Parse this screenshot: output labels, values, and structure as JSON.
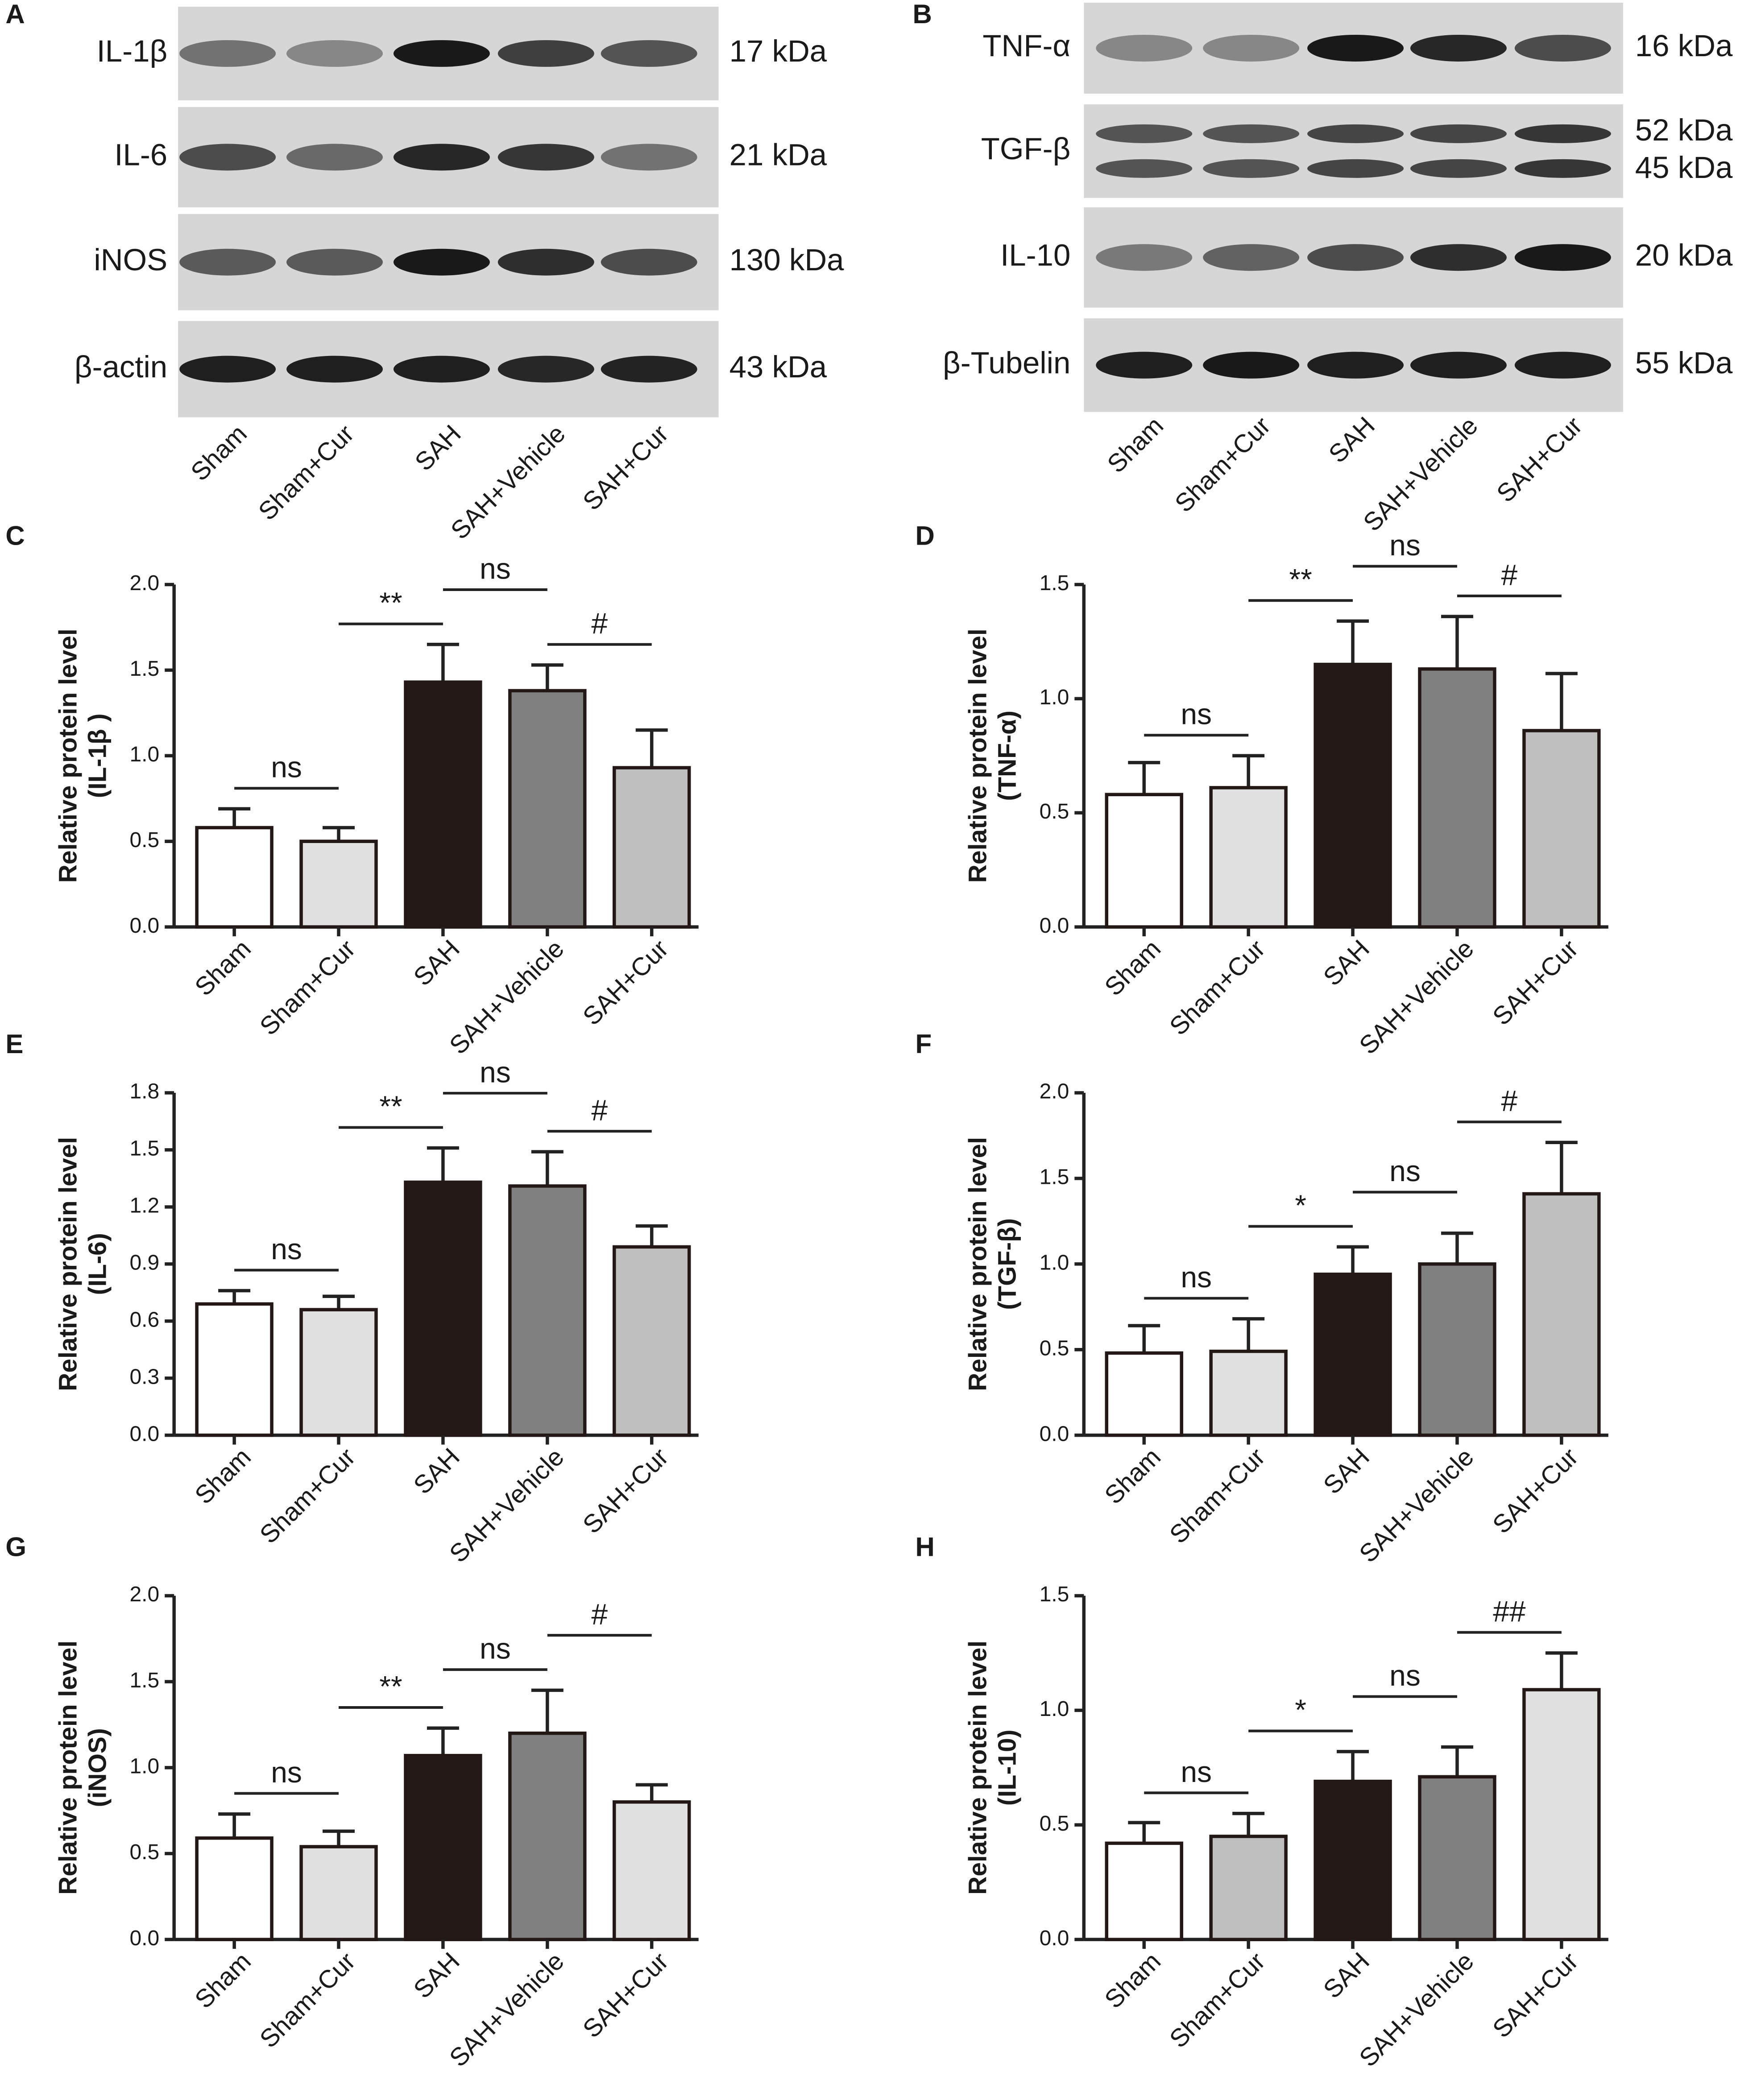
{
  "blots": [
    {
      "panel": "A",
      "proteins": [
        {
          "name": "IL-1β",
          "sizes": [
            "17 kDa"
          ]
        },
        {
          "name": "IL-6",
          "sizes": [
            "21 kDa"
          ]
        },
        {
          "name": "iNOS",
          "sizes": [
            "130 kDa"
          ]
        },
        {
          "name": "β-actin",
          "sizes": [
            "43 kDa"
          ]
        }
      ],
      "lanes": [
        "Sham",
        "Sham+Cur",
        "SAH",
        "SAH+Vehicle",
        "SAH+Cur"
      ]
    },
    {
      "panel": "B",
      "proteins": [
        {
          "name": "TNF-α",
          "sizes": [
            "16 kDa"
          ]
        },
        {
          "name": "TGF-β",
          "sizes": [
            "52 kDa",
            "45 kDa"
          ]
        },
        {
          "name": "IL-10",
          "sizes": [
            "20 kDa"
          ]
        },
        {
          "name": "β-Tubelin",
          "sizes": [
            "55 kDa"
          ]
        }
      ],
      "lanes": [
        "Sham",
        "Sham+Cur",
        "SAH",
        "SAH+Vehicle",
        "SAH+Cur"
      ]
    }
  ],
  "chart_data": [
    {
      "type": "bar",
      "panel": "C",
      "ylabel": [
        "Relative protein level",
        "(IL-1β )"
      ],
      "categories": [
        "Sham",
        "Sham+Cur",
        "SAH",
        "SAH+Vehicle",
        "SAH+Cur"
      ],
      "values": [
        0.58,
        0.5,
        1.43,
        1.38,
        0.93
      ],
      "errors": [
        0.11,
        0.08,
        0.22,
        0.15,
        0.22
      ],
      "colors": [
        "#ffffff",
        "#e0e0e0",
        "#231815",
        "#808080",
        "#bfbfbf"
      ],
      "ylim": [
        0,
        2
      ],
      "yticks": [
        {
          "value": 0,
          "label": "0.0"
        },
        0.5,
        {
          "value": 1,
          "label": "1.0"
        },
        1.5,
        {
          "value": 2,
          "label": "2.0"
        }
      ],
      "brackets": [
        {
          "from": 0,
          "to": 1,
          "label": "ns"
        },
        {
          "from": 1,
          "to": 2,
          "label": "**"
        },
        {
          "from": 2,
          "to": 3,
          "label": "ns"
        },
        {
          "from": 3,
          "to": 4,
          "label": "#"
        }
      ]
    },
    {
      "type": "bar",
      "panel": "D",
      "ylabel": [
        "Relative protein level",
        "(TNF-α)"
      ],
      "categories": [
        "Sham",
        "Sham+Cur",
        "SAH",
        "SAH+Vehicle",
        "SAH+Cur"
      ],
      "values": [
        0.58,
        0.61,
        1.15,
        1.13,
        0.86
      ],
      "errors": [
        0.14,
        0.14,
        0.19,
        0.23,
        0.25
      ],
      "colors": [
        "#ffffff",
        "#e0e0e0",
        "#231815",
        "#808080",
        "#bfbfbf"
      ],
      "ylim": [
        0,
        1.5
      ],
      "yticks": [
        {
          "value": 0,
          "label": "0.0"
        },
        0.5,
        {
          "value": 1,
          "label": "1.0"
        },
        1.5
      ],
      "brackets": [
        {
          "from": 0,
          "to": 1,
          "label": "ns"
        },
        {
          "from": 1,
          "to": 2,
          "label": "**"
        },
        {
          "from": 2,
          "to": 3,
          "label": "ns"
        },
        {
          "from": 3,
          "to": 4,
          "label": "#"
        }
      ]
    },
    {
      "type": "bar",
      "panel": "E",
      "ylabel": [
        "Relative protein level",
        "(IL-6)"
      ],
      "categories": [
        "Sham",
        "Sham+Cur",
        "SAH",
        "SAH+Vehicle",
        "SAH+Cur"
      ],
      "values": [
        0.69,
        0.66,
        1.33,
        1.31,
        0.99
      ],
      "errors": [
        0.07,
        0.07,
        0.18,
        0.18,
        0.11
      ],
      "colors": [
        "#ffffff",
        "#e0e0e0",
        "#231815",
        "#808080",
        "#bfbfbf"
      ],
      "ylim": [
        0,
        1.8
      ],
      "yticks": [
        {
          "value": 0,
          "label": "0.0"
        },
        0.3,
        0.6,
        0.9,
        1.2,
        1.5,
        1.8
      ],
      "brackets": [
        {
          "from": 0,
          "to": 1,
          "label": "ns"
        },
        {
          "from": 1,
          "to": 2,
          "label": "**"
        },
        {
          "from": 2,
          "to": 3,
          "label": "ns"
        },
        {
          "from": 3,
          "to": 4,
          "label": "#"
        }
      ]
    },
    {
      "type": "bar",
      "panel": "F",
      "ylabel": [
        "Relative protein level",
        "(TGF-β)"
      ],
      "categories": [
        "Sham",
        "Sham+Cur",
        "SAH",
        "SAH+Vehicle",
        "SAH+Cur"
      ],
      "values": [
        0.48,
        0.49,
        0.94,
        1.0,
        1.41
      ],
      "errors": [
        0.16,
        0.19,
        0.16,
        0.18,
        0.3
      ],
      "colors": [
        "#ffffff",
        "#e0e0e0",
        "#231815",
        "#808080",
        "#bfbfbf"
      ],
      "ylim": [
        0,
        2
      ],
      "yticks": [
        {
          "value": 0,
          "label": "0.0"
        },
        0.5,
        {
          "value": 1,
          "label": "1.0"
        },
        1.5,
        {
          "value": 2,
          "label": "2.0"
        }
      ],
      "brackets": [
        {
          "from": 0,
          "to": 1,
          "label": "ns"
        },
        {
          "from": 1,
          "to": 2,
          "label": "*"
        },
        {
          "from": 2,
          "to": 3,
          "label": "ns"
        },
        {
          "from": 3,
          "to": 4,
          "label": "#"
        }
      ]
    },
    {
      "type": "bar",
      "panel": "G",
      "ylabel": [
        "Relative protein level",
        "(iNOS)"
      ],
      "categories": [
        "Sham",
        "Sham+Cur",
        "SAH",
        "SAH+Vehicle",
        "SAH+Cur"
      ],
      "values": [
        0.59,
        0.54,
        1.07,
        1.2,
        0.8
      ],
      "errors": [
        0.14,
        0.09,
        0.16,
        0.25,
        0.1
      ],
      "colors": [
        "#ffffff",
        "#e0e0e0",
        "#231815",
        "#808080",
        "#e0e0e0"
      ],
      "ylim": [
        0,
        2
      ],
      "yticks": [
        {
          "value": 0,
          "label": "0.0"
        },
        0.5,
        {
          "value": 1,
          "label": "1.0"
        },
        1.5,
        {
          "value": 2,
          "label": "2.0"
        }
      ],
      "brackets": [
        {
          "from": 0,
          "to": 1,
          "label": "ns"
        },
        {
          "from": 1,
          "to": 2,
          "label": "**"
        },
        {
          "from": 2,
          "to": 3,
          "label": "ns"
        },
        {
          "from": 3,
          "to": 4,
          "label": "#"
        }
      ]
    },
    {
      "type": "bar",
      "panel": "H",
      "ylabel": [
        "Relative protein level",
        "(IL-10)"
      ],
      "categories": [
        "Sham",
        "Sham+Cur",
        "SAH",
        "SAH+Vehicle",
        "SAH+Cur"
      ],
      "values": [
        0.42,
        0.45,
        0.69,
        0.71,
        1.09
      ],
      "errors": [
        0.09,
        0.1,
        0.13,
        0.13,
        0.16
      ],
      "colors": [
        "#ffffff",
        "#bfbfbf",
        "#231815",
        "#808080",
        "#e0e0e0"
      ],
      "ylim": [
        0,
        1.5
      ],
      "yticks": [
        {
          "value": 0,
          "label": "0.0"
        },
        0.5,
        {
          "value": 1,
          "label": "1.0"
        },
        1.5
      ],
      "brackets": [
        {
          "from": 0,
          "to": 1,
          "label": "ns"
        },
        {
          "from": 1,
          "to": 2,
          "label": "*"
        },
        {
          "from": 2,
          "to": 3,
          "label": "ns"
        },
        {
          "from": 3,
          "to": 4,
          "label": "##"
        }
      ]
    }
  ]
}
